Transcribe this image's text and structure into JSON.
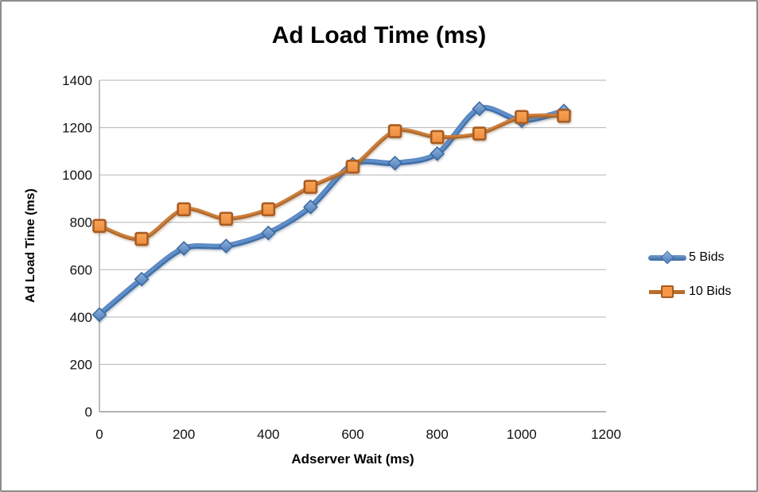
{
  "window": {
    "background": "#ffffff",
    "border_color": "#8d8d8d"
  },
  "chart_data": {
    "type": "line",
    "title": "Ad Load Time (ms)",
    "xlabel": "Adserver Wait (ms)",
    "ylabel": "Ad Load Time (ms)",
    "x": [
      0,
      100,
      200,
      300,
      400,
      500,
      600,
      700,
      800,
      900,
      1000,
      1100
    ],
    "xlim": [
      0,
      1200
    ],
    "ylim": [
      0,
      1400
    ],
    "x_ticks": [
      0,
      200,
      400,
      600,
      800,
      1000,
      1200
    ],
    "y_ticks": [
      0,
      200,
      400,
      600,
      800,
      1000,
      1200,
      1400
    ],
    "grid": "horizontal",
    "gridline_color": "#b3b3b3",
    "axis_color": "#9a9a9a",
    "legend_position": "right",
    "smooth_lines": true,
    "series": [
      {
        "name": "5 Bids",
        "marker": "diamond",
        "line_color_dark": "#3f6fa9",
        "line_color_light": "#5f8ec9",
        "marker_fill_top": "#8fb2dd",
        "marker_fill_bottom": "#4d7cb8",
        "marker_stroke": "#3b689e",
        "values": [
          410,
          560,
          690,
          700,
          755,
          865,
          1045,
          1050,
          1090,
          1280,
          1230,
          1270
        ]
      },
      {
        "name": "10 Bids",
        "marker": "square",
        "line_color_dark": "#b0662a",
        "line_color_light": "#cd803a",
        "marker_fill_top": "#f9a558",
        "marker_fill_bottom": "#ec8c3d",
        "marker_stroke": "#a95c21",
        "values": [
          785,
          730,
          855,
          815,
          855,
          950,
          1035,
          1185,
          1160,
          1175,
          1245,
          1250
        ]
      }
    ]
  }
}
